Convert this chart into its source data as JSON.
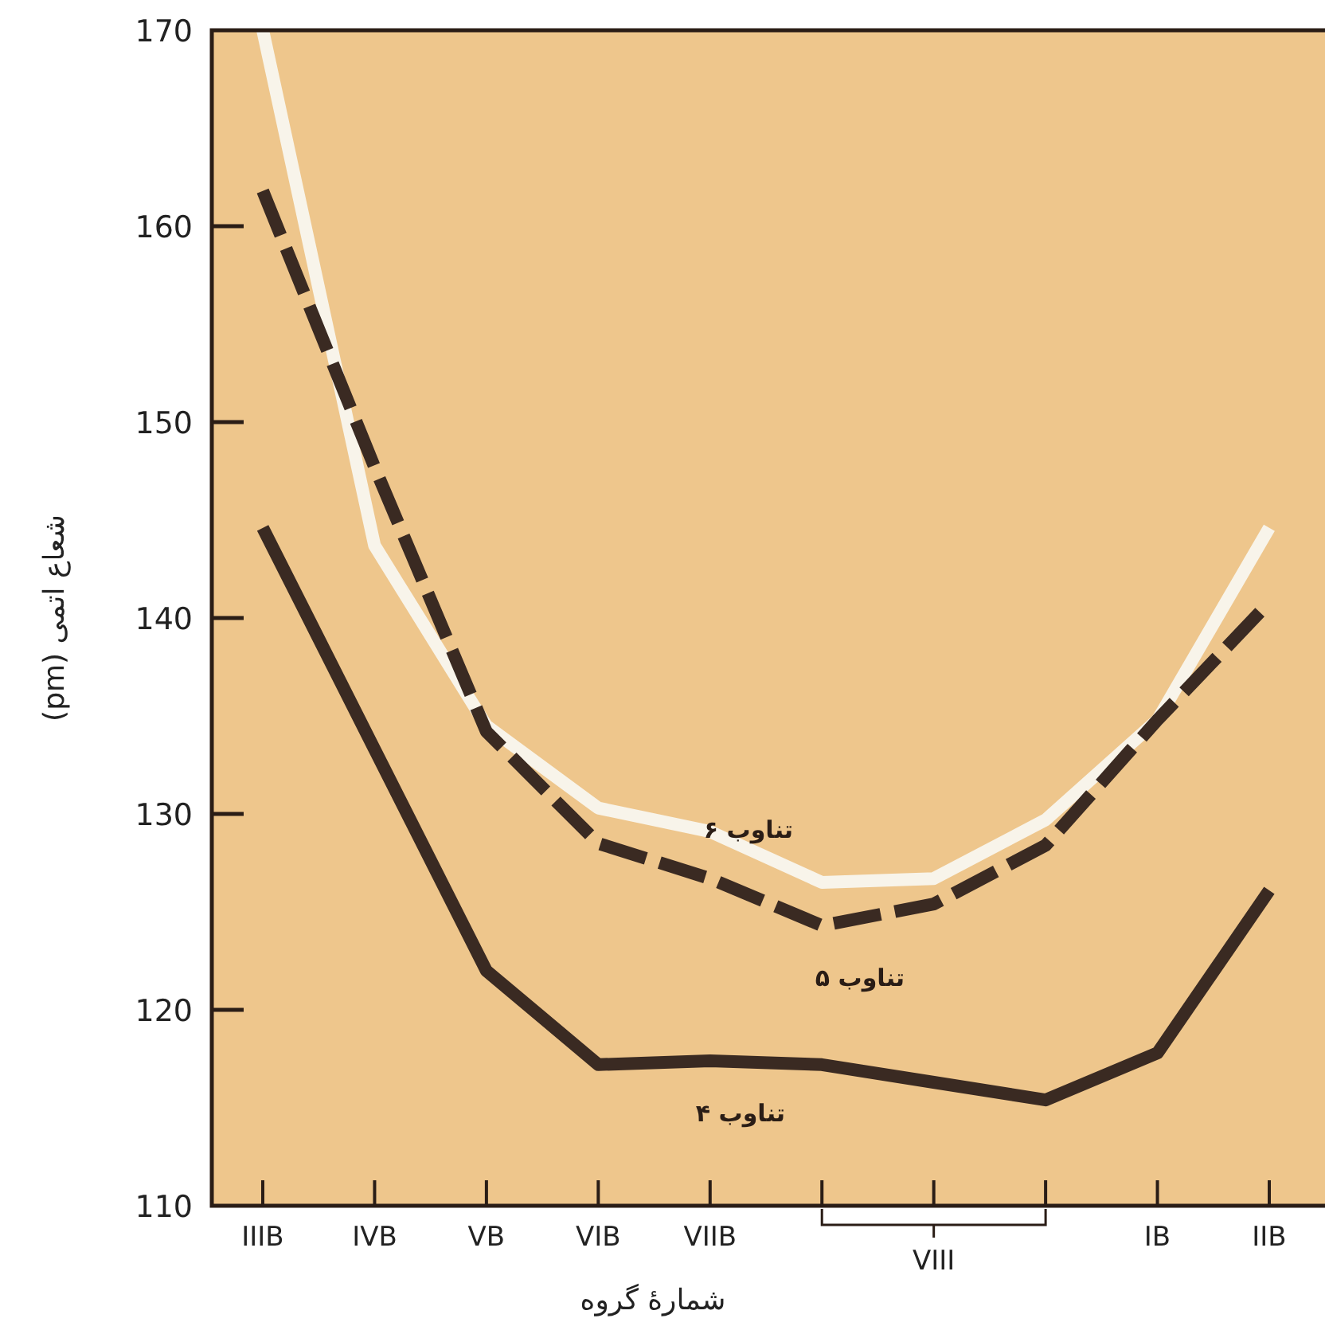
{
  "chart_data": {
    "type": "line",
    "xlabel": "شمارهٔ گروه",
    "ylabel": "شعاع اتمی (pm)",
    "categories": [
      "IIIB",
      "IVB",
      "VB",
      "VIB",
      "VIIB",
      null,
      "VIII",
      null,
      "IB",
      "IIB"
    ],
    "ylim": [
      110,
      170
    ],
    "yticks": [
      110,
      120,
      130,
      140,
      150,
      160,
      170
    ],
    "marker": "none",
    "series": [
      {
        "name": "تناوب ۶",
        "color": "#f8f4ea",
        "line_style": "solid",
        "values": [
          170,
          143.7,
          134.5,
          130.3,
          129.1,
          126.5,
          126.7,
          129.7,
          134.8,
          144.6
        ]
      },
      {
        "name": "تناوب ۵",
        "color": "#3a2a22",
        "line_style": "dashed",
        "values": [
          161.8,
          147.7,
          134.2,
          128.5,
          126.7,
          124.3,
          125.4,
          128.4,
          134.8,
          140.8
        ]
      },
      {
        "name": "تناوب ۴",
        "color": "#3a2a22",
        "line_style": "solid",
        "values": [
          144.6,
          133.3,
          122.0,
          117.2,
          117.4,
          117.2,
          116.3,
          115.4,
          117.8,
          126.1
        ]
      }
    ]
  }
}
